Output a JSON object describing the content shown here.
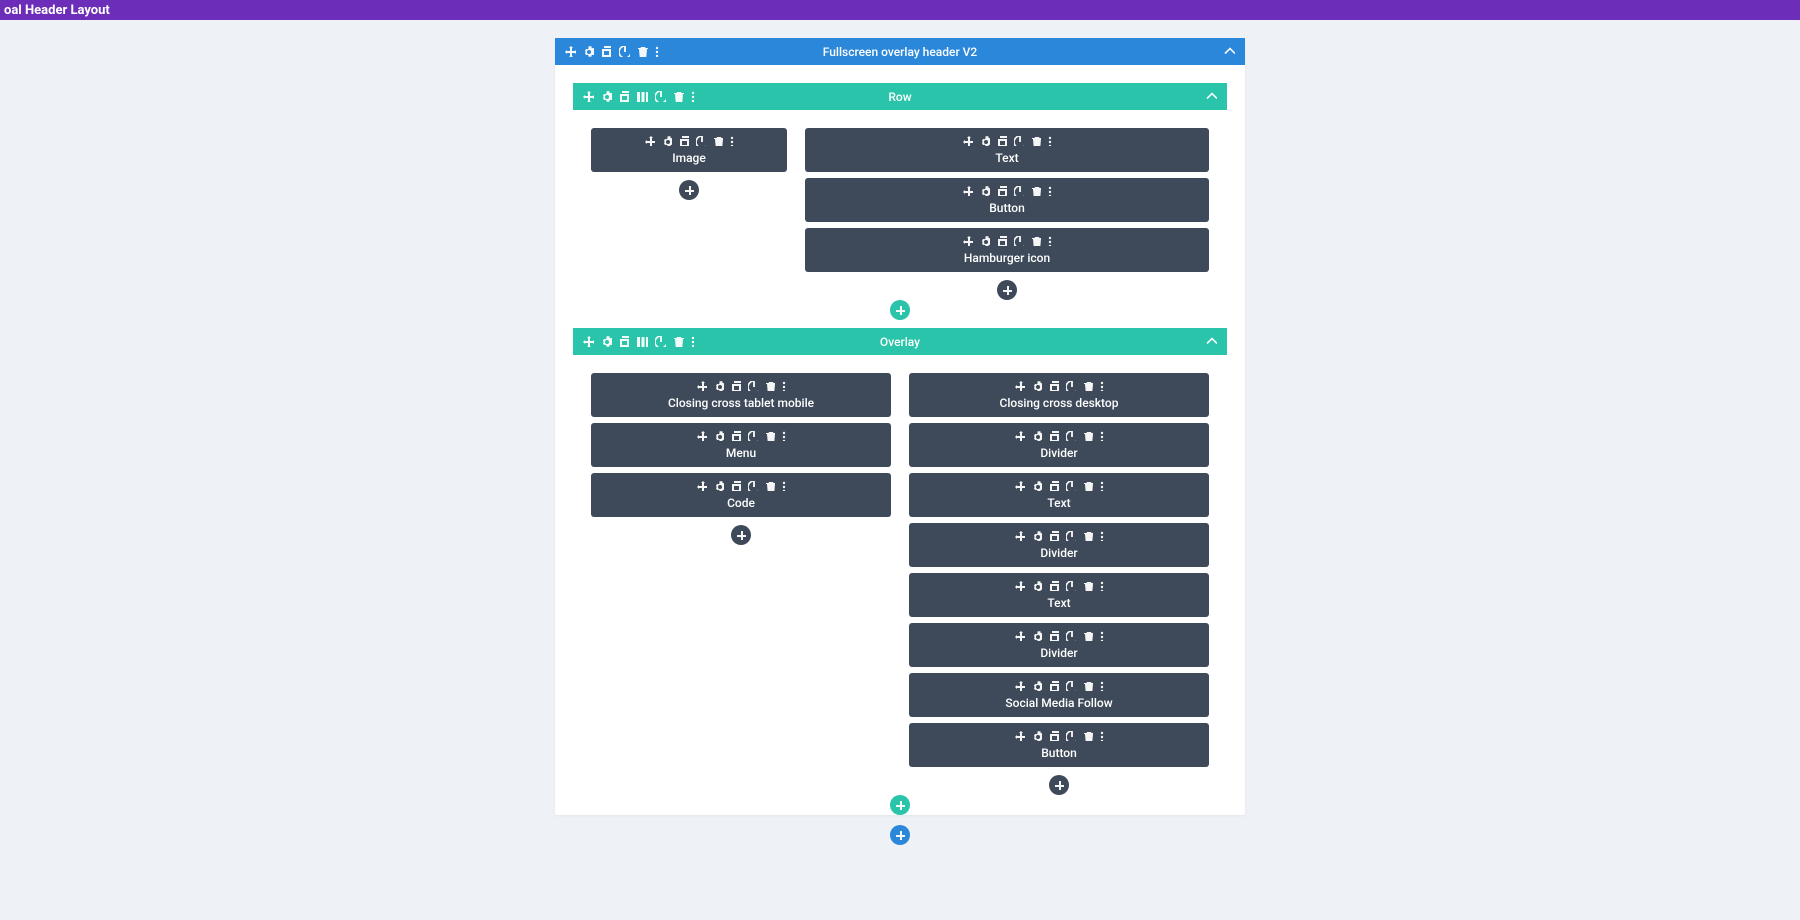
{
  "topbar": {
    "title": "oal Header Layout"
  },
  "colors": {
    "page_bg": "#eef1f6",
    "section_header": "#2b87da",
    "row_header": "#29c4a9",
    "module_bg": "#3e4a59",
    "add_dark": "#3e4a59",
    "add_teal": "#29c4a9",
    "add_blue": "#2b87da",
    "topbar": "#6c2eb9"
  },
  "builder": {
    "section": {
      "title": "Fullscreen overlay header V2",
      "rows": [
        {
          "title": "Row",
          "columns": [
            {
              "width": "narrow",
              "modules": [
                "Image"
              ]
            },
            {
              "width": "wide",
              "modules": [
                "Text",
                "Button",
                "Hamburger icon"
              ]
            }
          ]
        },
        {
          "title": "Overlay",
          "columns": [
            {
              "width": "half",
              "modules": [
                "Closing cross tablet mobile",
                "Menu",
                "Code"
              ]
            },
            {
              "width": "half",
              "modules": [
                "Closing cross desktop",
                "Divider",
                "Text",
                "Divider",
                "Text",
                "Divider",
                "Social Media Follow",
                "Button"
              ]
            }
          ]
        }
      ]
    }
  }
}
